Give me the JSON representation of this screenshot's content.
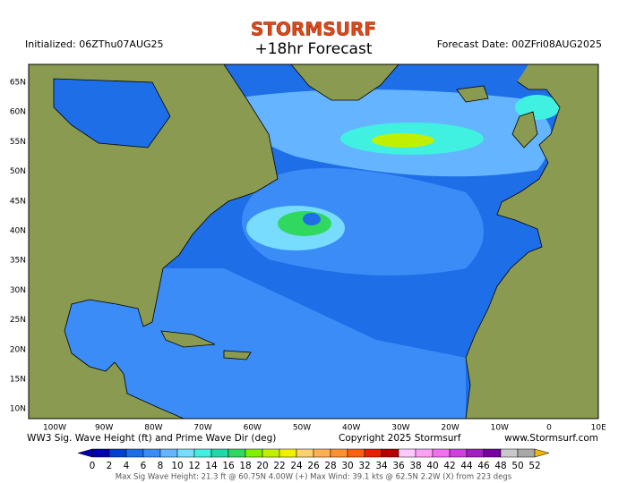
{
  "header": {
    "brand": "STORMSURF",
    "title": "+18hr Forecast",
    "initialized": "Initialized: 06ZThu07AUG25",
    "forecast_date": "Forecast Date: 00ZFri08AUG2025"
  },
  "map": {
    "lat_labels": [
      "65N",
      "60N",
      "55N",
      "50N",
      "45N",
      "40N",
      "35N",
      "30N",
      "25N",
      "20N",
      "15N",
      "10N"
    ],
    "lon_labels": [
      "100W",
      "90W",
      "80W",
      "70W",
      "60W",
      "50W",
      "40W",
      "30W",
      "20W",
      "10W",
      "0",
      "10E"
    ]
  },
  "footer": {
    "caption": "WW3 Sig. Wave Height (ft) and Prime Wave Dir (deg)",
    "copyright": "Copyright 2025 Stormsurf",
    "site": "www.Stormsurf.com",
    "stats": "Max Sig Wave Height: 21.3 ft @ 60.75N 4.00W (+)   Max Wind: 39.1 kts @ 62.5N 2.2W (X) from 223 degs"
  },
  "legend": {
    "ticks": [
      0,
      2,
      4,
      6,
      8,
      10,
      12,
      14,
      16,
      18,
      20,
      22,
      24,
      26,
      28,
      30,
      32,
      34,
      36,
      38,
      40,
      42,
      44,
      46,
      48,
      50,
      52
    ],
    "colors": [
      "#0000b0",
      "#0040d0",
      "#1e6ee8",
      "#3c8cf8",
      "#64b4ff",
      "#78dcff",
      "#40f0e0",
      "#20d8a8",
      "#30d860",
      "#80f000",
      "#c0f000",
      "#f0f000",
      "#ffd070",
      "#ffb050",
      "#ff9030",
      "#ff6010",
      "#e82000",
      "#b80000",
      "#ffc8ff",
      "#ffa0f8",
      "#f070f0",
      "#d040e0",
      "#a020c0",
      "#7800a0",
      "#c8c8c8",
      "#a8a8a8"
    ],
    "end_colors": [
      "#0000b0",
      "#f0b800"
    ]
  }
}
